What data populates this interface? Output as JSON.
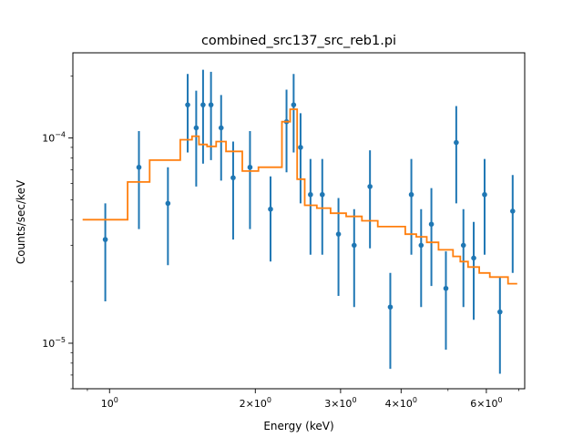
{
  "chart_data": {
    "type": "scatter",
    "title": "combined_src137_src_reb1.pi",
    "xlabel": "Energy (keV)",
    "ylabel": "Counts/sec/keV",
    "xscale": "log",
    "yscale": "log",
    "xlim": [
      0.84,
      7.2
    ],
    "ylim": [
      6e-06,
      0.00026
    ],
    "x_ticks": [
      {
        "value": 1,
        "label": "10^0"
      },
      {
        "value": 2,
        "label": "2×10^0"
      },
      {
        "value": 3,
        "label": "3×10^0"
      },
      {
        "value": 4,
        "label": "4×10^0"
      },
      {
        "value": 6,
        "label": "6×10^0"
      }
    ],
    "y_ticks": [
      {
        "value": 1e-05,
        "label": "10^-5"
      },
      {
        "value": 0.0001,
        "label": "10^-4"
      }
    ],
    "colors": {
      "data": "#1f77b4",
      "model": "#ff7f0e"
    },
    "series": [
      {
        "kind": "data_with_errorbars",
        "points": [
          {
            "x": 0.98,
            "y": 3.2e-05,
            "ylo": 1.6e-05,
            "yhi": 4.8e-05
          },
          {
            "x": 1.15,
            "y": 7.2e-05,
            "ylo": 3.6e-05,
            "yhi": 0.000108
          },
          {
            "x": 1.32,
            "y": 4.8e-05,
            "ylo": 2.4e-05,
            "yhi": 7.2e-05
          },
          {
            "x": 1.45,
            "y": 0.000145,
            "ylo": 8.5e-05,
            "yhi": 0.000205
          },
          {
            "x": 1.51,
            "y": 0.000112,
            "ylo": 5.8e-05,
            "yhi": 0.00017
          },
          {
            "x": 1.56,
            "y": 0.000145,
            "ylo": 7.5e-05,
            "yhi": 0.000215
          },
          {
            "x": 1.62,
            "y": 0.000145,
            "ylo": 7.8e-05,
            "yhi": 0.00021
          },
          {
            "x": 1.7,
            "y": 0.000112,
            "ylo": 6.2e-05,
            "yhi": 0.000162
          },
          {
            "x": 1.8,
            "y": 6.4e-05,
            "ylo": 3.2e-05,
            "yhi": 9.6e-05
          },
          {
            "x": 1.95,
            "y": 7.2e-05,
            "ylo": 3.6e-05,
            "yhi": 0.000108
          },
          {
            "x": 2.15,
            "y": 4.5e-05,
            "ylo": 2.5e-05,
            "yhi": 6.5e-05
          },
          {
            "x": 2.32,
            "y": 0.00012,
            "ylo": 6.8e-05,
            "yhi": 0.000172
          },
          {
            "x": 2.4,
            "y": 0.000145,
            "ylo": 8.5e-05,
            "yhi": 0.000205
          },
          {
            "x": 2.48,
            "y": 9e-05,
            "ylo": 4.8e-05,
            "yhi": 0.000132
          },
          {
            "x": 2.6,
            "y": 5.3e-05,
            "ylo": 2.7e-05,
            "yhi": 7.9e-05
          },
          {
            "x": 2.75,
            "y": 5.3e-05,
            "ylo": 2.7e-05,
            "yhi": 7.9e-05
          },
          {
            "x": 2.97,
            "y": 3.4e-05,
            "ylo": 1.7e-05,
            "yhi": 5.1e-05
          },
          {
            "x": 3.2,
            "y": 3e-05,
            "ylo": 1.5e-05,
            "yhi": 4.5e-05
          },
          {
            "x": 3.45,
            "y": 5.8e-05,
            "ylo": 2.9e-05,
            "yhi": 8.7e-05
          },
          {
            "x": 3.8,
            "y": 1.5e-05,
            "ylo": 7.5e-06,
            "yhi": 2.2e-05
          },
          {
            "x": 4.2,
            "y": 5.3e-05,
            "ylo": 2.7e-05,
            "yhi": 7.9e-05
          },
          {
            "x": 4.4,
            "y": 3e-05,
            "ylo": 1.5e-05,
            "yhi": 4.5e-05
          },
          {
            "x": 4.62,
            "y": 3.8e-05,
            "ylo": 1.9e-05,
            "yhi": 5.7e-05
          },
          {
            "x": 4.95,
            "y": 1.85e-05,
            "ylo": 9.3e-06,
            "yhi": 2.8e-05
          },
          {
            "x": 5.2,
            "y": 9.5e-05,
            "ylo": 4.8e-05,
            "yhi": 0.000143
          },
          {
            "x": 5.38,
            "y": 3e-05,
            "ylo": 1.5e-05,
            "yhi": 4.5e-05
          },
          {
            "x": 5.65,
            "y": 2.6e-05,
            "ylo": 1.3e-05,
            "yhi": 3.9e-05
          },
          {
            "x": 5.95,
            "y": 5.3e-05,
            "ylo": 2.7e-05,
            "yhi": 7.9e-05
          },
          {
            "x": 6.4,
            "y": 1.42e-05,
            "ylo": 7.1e-06,
            "yhi": 2.1e-05
          },
          {
            "x": 6.8,
            "y": 4.4e-05,
            "ylo": 2.2e-05,
            "yhi": 6.6e-05
          }
        ]
      },
      {
        "kind": "model_step",
        "steps": [
          {
            "x0": 0.88,
            "x1": 1.09,
            "y": 4e-05
          },
          {
            "x0": 1.09,
            "x1": 1.21,
            "y": 6.1e-05
          },
          {
            "x0": 1.21,
            "x1": 1.4,
            "y": 7.8e-05
          },
          {
            "x0": 1.4,
            "x1": 1.48,
            "y": 9.8e-05
          },
          {
            "x0": 1.48,
            "x1": 1.53,
            "y": 0.000102
          },
          {
            "x0": 1.53,
            "x1": 1.59,
            "y": 9.3e-05
          },
          {
            "x0": 1.59,
            "x1": 1.66,
            "y": 9.1e-05
          },
          {
            "x0": 1.66,
            "x1": 1.74,
            "y": 9.6e-05
          },
          {
            "x0": 1.74,
            "x1": 1.88,
            "y": 8.6e-05
          },
          {
            "x0": 1.88,
            "x1": 2.03,
            "y": 6.9e-05
          },
          {
            "x0": 2.03,
            "x1": 2.27,
            "y": 7.2e-05
          },
          {
            "x0": 2.27,
            "x1": 2.36,
            "y": 0.00012
          },
          {
            "x0": 2.36,
            "x1": 2.44,
            "y": 0.000138
          },
          {
            "x0": 2.44,
            "x1": 2.53,
            "y": 6.3e-05
          },
          {
            "x0": 2.53,
            "x1": 2.68,
            "y": 4.7e-05
          },
          {
            "x0": 2.68,
            "x1": 2.86,
            "y": 4.55e-05
          },
          {
            "x0": 2.86,
            "x1": 3.08,
            "y": 4.3e-05
          },
          {
            "x0": 3.08,
            "x1": 3.32,
            "y": 4.15e-05
          },
          {
            "x0": 3.32,
            "x1": 3.58,
            "y": 3.95e-05
          },
          {
            "x0": 3.58,
            "x1": 4.08,
            "y": 3.7e-05
          },
          {
            "x0": 4.08,
            "x1": 4.3,
            "y": 3.4e-05
          },
          {
            "x0": 4.3,
            "x1": 4.52,
            "y": 3.3e-05
          },
          {
            "x0": 4.52,
            "x1": 4.78,
            "y": 3.1e-05
          },
          {
            "x0": 4.78,
            "x1": 5.12,
            "y": 2.85e-05
          },
          {
            "x0": 5.12,
            "x1": 5.3,
            "y": 2.65e-05
          },
          {
            "x0": 5.3,
            "x1": 5.5,
            "y": 2.5e-05
          },
          {
            "x0": 5.5,
            "x1": 5.8,
            "y": 2.35e-05
          },
          {
            "x0": 5.8,
            "x1": 6.1,
            "y": 2.2e-05
          },
          {
            "x0": 6.1,
            "x1": 6.65,
            "y": 2.1e-05
          },
          {
            "x0": 6.65,
            "x1": 6.95,
            "y": 1.95e-05
          }
        ]
      }
    ]
  }
}
